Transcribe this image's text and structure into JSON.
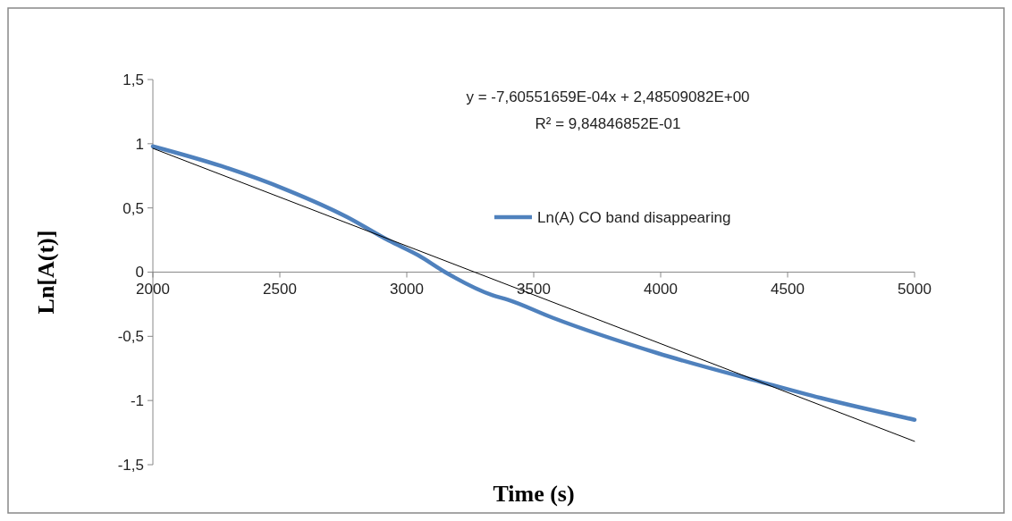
{
  "chart_data": {
    "type": "line",
    "xlabel": "Time (s)",
    "ylabel": "Ln[A(t)]",
    "xlim": [
      2000,
      5000
    ],
    "xticks": [
      2000,
      2500,
      3000,
      3500,
      4000,
      4500,
      5000
    ],
    "ylim": [
      -1.5,
      1.5
    ],
    "yticks": [
      {
        "value": -1.5,
        "label": "-1,5"
      },
      {
        "value": -1,
        "label": "-1"
      },
      {
        "value": -0.5,
        "label": "-0,5"
      },
      {
        "value": 0,
        "label": "0"
      },
      {
        "value": 0.5,
        "label": "0,5"
      },
      {
        "value": 1,
        "label": "1"
      },
      {
        "value": 1.5,
        "label": "1,5"
      }
    ],
    "grid": false,
    "legend": "right",
    "annotations": [
      "y = -7,60551659E-04x + 2,48509082E+00",
      "R² = 9,84846852E-01"
    ],
    "series": [
      {
        "name": "Ln(A) CO band disappearing",
        "color": "#4f81bd",
        "x": [
          2000,
          2271,
          2528,
          2764,
          2930,
          3046,
          3151,
          3338,
          3398,
          3574,
          3986,
          4394,
          4630,
          5000
        ],
        "values": [
          0.98,
          0.825,
          0.64,
          0.43,
          0.245,
          0.13,
          0.0,
          -0.18,
          -0.215,
          -0.355,
          -0.63,
          -0.855,
          -0.98,
          -1.15
        ]
      },
      {
        "type": "line",
        "color": "#000000",
        "x": [
          2000,
          5000
        ],
        "values": [
          0.964,
          -1.318
        ]
      }
    ]
  }
}
